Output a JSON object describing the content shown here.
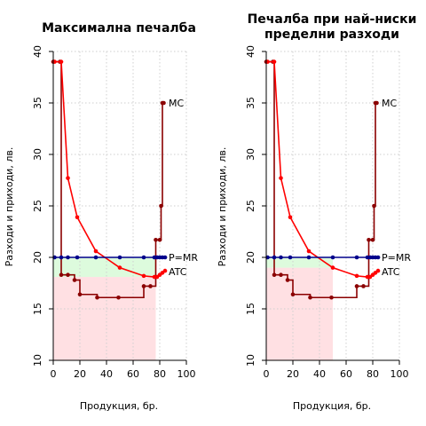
{
  "chart_data": [
    {
      "type": "line",
      "title": [
        "Максимална печалба"
      ],
      "xlabel": "Продукция, бр.",
      "ylabel": "Разходи и приходи, лв.",
      "xlim": [
        0,
        100
      ],
      "ylim": [
        10,
        40
      ],
      "xticks": [
        0,
        20,
        40,
        60,
        80,
        100
      ],
      "yticks": [
        10,
        15,
        20,
        25,
        30,
        35,
        40
      ],
      "grid": true,
      "price": 20,
      "quantity": 77,
      "atc_at_quantity": 18.1,
      "series": [
        {
          "name": "MC",
          "color": "#8b0000",
          "shape": "step",
          "x": [
            0,
            5,
            6,
            11,
            16,
            20,
            33,
            49,
            68,
            73,
            77,
            80,
            81,
            82,
            83
          ],
          "y": [
            39,
            39,
            18.3,
            18.3,
            17.8,
            16.4,
            16.1,
            16.1,
            17.2,
            17.2,
            21.7,
            21.7,
            25,
            35,
            35
          ]
        },
        {
          "name": "ATC",
          "color": "#ff0000",
          "shape": "line",
          "x": [
            1,
            6,
            11,
            18,
            32,
            50,
            68,
            76,
            78,
            80,
            82,
            84
          ],
          "y": [
            39,
            39,
            27.7,
            23.9,
            20.6,
            19,
            18.2,
            18.1,
            18.1,
            18.3,
            18.5,
            18.7
          ]
        },
        {
          "name": "P=MR",
          "color": "#00008b",
          "shape": "line",
          "x": [
            1,
            6,
            11,
            18,
            32,
            50,
            68,
            76,
            78,
            80,
            82,
            84
          ],
          "y": [
            20,
            20,
            20,
            20,
            20,
            20,
            20,
            20,
            20,
            20,
            20,
            20
          ]
        }
      ]
    },
    {
      "type": "line",
      "title": [
        "Печалба при най-ниски",
        "пределни разходи"
      ],
      "xlabel": "Продукция, бр.",
      "ylabel": "Разходи и приходи, лв.",
      "xlim": [
        0,
        100
      ],
      "ylim": [
        10,
        40
      ],
      "xticks": [
        0,
        20,
        40,
        60,
        80,
        100
      ],
      "yticks": [
        10,
        15,
        20,
        25,
        30,
        35,
        40
      ],
      "grid": true,
      "price": 20,
      "quantity": 50,
      "atc_at_quantity": 19,
      "series": [
        {
          "name": "MC",
          "color": "#8b0000",
          "shape": "step",
          "x": [
            0,
            5,
            6,
            11,
            16,
            20,
            33,
            49,
            68,
            73,
            77,
            80,
            81,
            82,
            83
          ],
          "y": [
            39,
            39,
            18.3,
            18.3,
            17.8,
            16.4,
            16.1,
            16.1,
            17.2,
            17.2,
            21.7,
            21.7,
            25,
            35,
            35
          ]
        },
        {
          "name": "ATC",
          "color": "#ff0000",
          "shape": "line",
          "x": [
            1,
            6,
            11,
            18,
            32,
            50,
            68,
            76,
            78,
            80,
            82,
            84
          ],
          "y": [
            39,
            39,
            27.7,
            23.9,
            20.6,
            19,
            18.2,
            18.1,
            18.1,
            18.3,
            18.5,
            18.7
          ]
        },
        {
          "name": "P=MR",
          "color": "#00008b",
          "shape": "line",
          "x": [
            1,
            6,
            11,
            18,
            32,
            50,
            68,
            76,
            78,
            80,
            82,
            84
          ],
          "y": [
            20,
            20,
            20,
            20,
            20,
            20,
            20,
            20,
            20,
            20,
            20,
            20
          ]
        }
      ]
    }
  ],
  "style": {
    "profit_fill": "#ddfbdd",
    "cost_fill": "#ffe0e3",
    "mc_color": "#8b0000",
    "atc_color": "#ff0000",
    "price_color": "#00008b",
    "grid_color": "#cfcfcf"
  }
}
